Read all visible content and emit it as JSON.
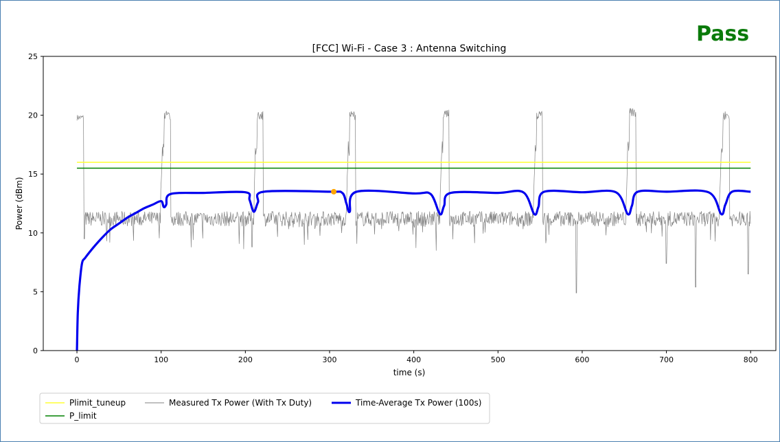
{
  "status": {
    "label": "Pass",
    "color": "#0a7a0a"
  },
  "chart_data": {
    "type": "line",
    "title": "[FCC] Wi-Fi - Case 3 : Antenna Switching",
    "xlabel": "time (s)",
    "ylabel": "Power (dBm)",
    "xlim": [
      -40,
      830
    ],
    "ylim": [
      0,
      25
    ],
    "xticks": [
      0,
      100,
      200,
      300,
      400,
      500,
      600,
      700,
      800
    ],
    "yticks": [
      0,
      5,
      10,
      15,
      20,
      25
    ],
    "grid": false,
    "legend_position": "bottom-left, below plot",
    "series": [
      {
        "name": "Plimit_tuneup",
        "color": "#ffff33",
        "x": [
          0,
          800
        ],
        "y": [
          16.0,
          16.0
        ]
      },
      {
        "name": "P_limit",
        "color": "#008000",
        "x": [
          0,
          800
        ],
        "y": [
          15.5,
          15.5
        ]
      },
      {
        "name": "Measured Tx Power (With Tx Duty)",
        "color": "#808080",
        "description_level": {
          "baseline_db": 11.2,
          "burst_db": 19.8
        },
        "bursts": [
          {
            "start": 0,
            "end": 8,
            "level": 19.8
          },
          {
            "start": 99,
            "end": 111,
            "level": 20.0
          },
          {
            "start": 210,
            "end": 221,
            "level": 20.0
          },
          {
            "start": 320,
            "end": 331,
            "level": 20.0
          },
          {
            "start": 431,
            "end": 442,
            "level": 20.2
          },
          {
            "start": 542,
            "end": 553,
            "level": 20.0
          },
          {
            "start": 652,
            "end": 664,
            "level": 20.2
          },
          {
            "start": 763,
            "end": 775,
            "level": 20.0
          }
        ],
        "dips": [
          [
            208,
            8.8
          ],
          [
            593,
            4.9
          ],
          [
            700,
            7.4
          ],
          [
            735,
            5.4
          ],
          [
            797,
            6.5
          ]
        ]
      },
      {
        "name": "Time-Average Tx Power (100s)",
        "color": "#0000ee",
        "x": [
          0,
          1,
          3,
          6,
          10,
          20,
          30,
          40,
          50,
          60,
          70,
          80,
          90,
          100,
          103,
          106,
          111,
          150,
          200,
          205,
          210,
          215,
          222,
          300,
          315,
          320,
          324,
          332,
          400,
          420,
          431,
          436,
          444,
          500,
          530,
          543,
          548,
          555,
          600,
          640,
          654,
          659,
          666,
          700,
          750,
          765,
          770,
          778,
          800
        ],
        "y": [
          0,
          3.2,
          5.5,
          7.4,
          7.9,
          8.8,
          9.6,
          10.3,
          10.8,
          11.3,
          11.7,
          12.1,
          12.4,
          12.7,
          12.2,
          12.4,
          13.3,
          13.4,
          13.45,
          12.8,
          11.8,
          12.6,
          13.5,
          13.5,
          13.4,
          12.5,
          11.8,
          13.5,
          13.35,
          13.3,
          11.6,
          12.3,
          13.4,
          13.4,
          13.45,
          11.6,
          12.2,
          13.5,
          13.45,
          13.45,
          11.6,
          12.3,
          13.5,
          13.5,
          13.45,
          11.6,
          12.4,
          13.5,
          13.5
        ]
      }
    ],
    "marker": {
      "x": 305,
      "y": 13.5,
      "color": "#ffa500"
    }
  }
}
